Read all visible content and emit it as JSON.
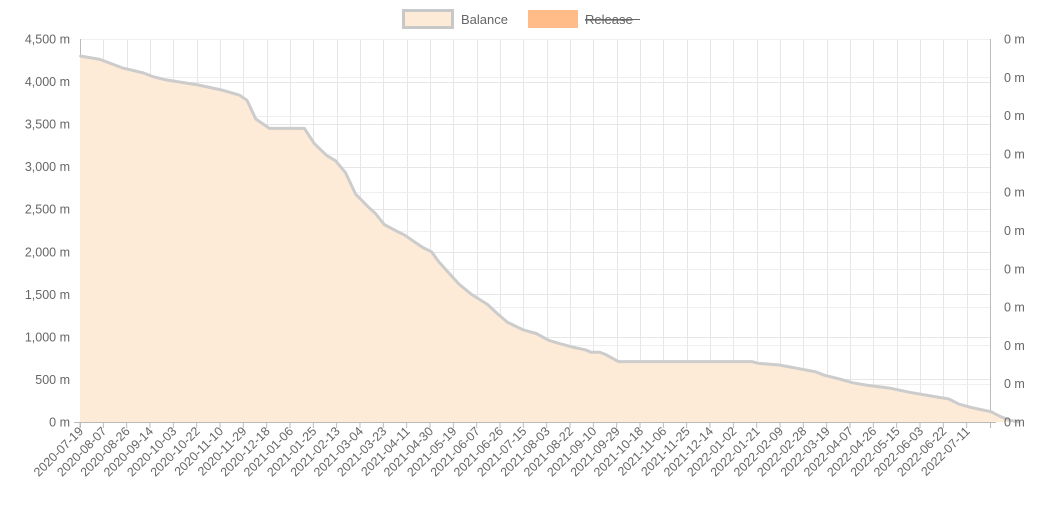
{
  "chart_data": {
    "type": "area",
    "legend": {
      "position": "top",
      "items": [
        {
          "name": "Balance",
          "fill": "#fdebd7",
          "stroke": "#c8c8c8",
          "hidden": false
        },
        {
          "name": "Release",
          "fill": "#ffbb88",
          "stroke": "#ffbb88",
          "hidden": true
        }
      ]
    },
    "grid": true,
    "colors": {
      "area_fill": "#fdebd7",
      "line": "#cccccc",
      "grid": "#e6e6e6",
      "axis": "#bbbbbb",
      "text": "#666666"
    },
    "x_ticks": [
      "2020-07-19",
      "2020-08-07",
      "2020-08-26",
      "2020-09-14",
      "2020-10-03",
      "2020-10-22",
      "2020-11-10",
      "2020-11-29",
      "2020-12-18",
      "2021-01-06",
      "2021-01-25",
      "2021-02-13",
      "2021-03-04",
      "2021-03-23",
      "2021-04-11",
      "2021-04-30",
      "2021-05-19",
      "2021-06-07",
      "2021-06-26",
      "2021-07-15",
      "2021-08-03",
      "2021-08-22",
      "2021-09-10",
      "2021-09-29",
      "2021-10-18",
      "2021-11-06",
      "2021-11-25",
      "2021-12-14",
      "2022-01-02",
      "2022-01-21",
      "2022-02-09",
      "2022-02-28",
      "2022-03-19",
      "2022-04-07",
      "2022-04-26",
      "2022-05-15",
      "2022-06-03",
      "2022-06-22",
      "2022-07-11"
    ],
    "xlim": [
      "2020-07-19",
      "2022-07-19"
    ],
    "y_left": {
      "ticks": [
        "0 m",
        "500 m",
        "1,000 m",
        "1,500 m",
        "2,000 m",
        "2,500 m",
        "3,000 m",
        "3,500 m",
        "4,000 m",
        "4,500 m"
      ],
      "ylim": [
        0,
        4500
      ]
    },
    "y_right": {
      "ticks": [
        "0 m",
        "0 m",
        "0 m",
        "0 m",
        "0 m",
        "0 m",
        "0 m",
        "0 m",
        "0 m",
        "0 m",
        "0 m"
      ]
    },
    "series": [
      {
        "name": "Balance",
        "points": [
          [
            "2020-07-19",
            4300
          ],
          [
            "2020-08-04",
            4260
          ],
          [
            "2020-08-22",
            4160
          ],
          [
            "2020-09-08",
            4100
          ],
          [
            "2020-09-15",
            4060
          ],
          [
            "2020-09-26",
            4020
          ],
          [
            "2020-10-22",
            3960
          ],
          [
            "2020-11-10",
            3900
          ],
          [
            "2020-11-24",
            3840
          ],
          [
            "2020-11-30",
            3780
          ],
          [
            "2020-12-07",
            3560
          ],
          [
            "2020-12-18",
            3450
          ],
          [
            "2021-01-15",
            3450
          ],
          [
            "2021-01-23",
            3270
          ],
          [
            "2021-02-02",
            3130
          ],
          [
            "2021-02-09",
            3070
          ],
          [
            "2021-02-17",
            2930
          ],
          [
            "2021-02-25",
            2680
          ],
          [
            "2021-03-07",
            2530
          ],
          [
            "2021-03-13",
            2450
          ],
          [
            "2021-03-20",
            2320
          ],
          [
            "2021-03-29",
            2250
          ],
          [
            "2021-04-05",
            2200
          ],
          [
            "2021-04-13",
            2120
          ],
          [
            "2021-04-20",
            2050
          ],
          [
            "2021-04-27",
            2000
          ],
          [
            "2021-05-03",
            1880
          ],
          [
            "2021-05-11",
            1750
          ],
          [
            "2021-05-19",
            1620
          ],
          [
            "2021-05-29",
            1500
          ],
          [
            "2021-06-11",
            1380
          ],
          [
            "2021-06-19",
            1270
          ],
          [
            "2021-06-27",
            1170
          ],
          [
            "2021-07-10",
            1080
          ],
          [
            "2021-07-20",
            1040
          ],
          [
            "2021-07-30",
            960
          ],
          [
            "2021-08-08",
            920
          ],
          [
            "2021-08-18",
            880
          ],
          [
            "2021-08-28",
            850
          ],
          [
            "2021-09-02",
            820
          ],
          [
            "2021-09-09",
            820
          ],
          [
            "2021-09-14",
            790
          ],
          [
            "2021-09-24",
            710
          ],
          [
            "2021-12-25",
            710
          ],
          [
            "2022-01-09",
            710
          ],
          [
            "2022-01-14",
            690
          ],
          [
            "2022-01-31",
            670
          ],
          [
            "2022-02-18",
            620
          ],
          [
            "2022-03-01",
            590
          ],
          [
            "2022-03-08",
            550
          ],
          [
            "2022-03-19",
            510
          ],
          [
            "2022-03-31",
            460
          ],
          [
            "2022-04-12",
            430
          ],
          [
            "2022-04-29",
            400
          ],
          [
            "2022-05-15",
            350
          ],
          [
            "2022-06-04",
            300
          ],
          [
            "2022-06-16",
            270
          ],
          [
            "2022-06-24",
            210
          ],
          [
            "2022-07-04",
            170
          ],
          [
            "2022-07-20",
            120
          ],
          [
            "2022-07-28",
            60
          ],
          [
            "2022-08-04",
            20
          ],
          [
            "2022-08-11",
            0
          ]
        ]
      },
      {
        "name": "Release",
        "points": []
      }
    ]
  }
}
